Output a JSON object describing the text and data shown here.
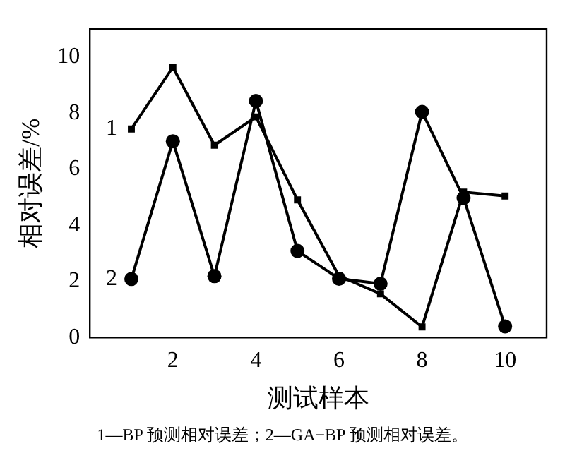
{
  "chart_data": {
    "type": "line",
    "xlabel": "测试样本",
    "ylabel": "相对误差/%",
    "x": [
      1,
      2,
      3,
      4,
      5,
      6,
      7,
      8,
      9,
      10
    ],
    "series": [
      {
        "name": "1",
        "color": "#000000",
        "marker": "square",
        "values": [
          7.44,
          9.64,
          6.86,
          7.87,
          4.91,
          2.2,
          1.56,
          0.38,
          5.19,
          5.05
        ]
      },
      {
        "name": "2",
        "color": "#000000",
        "marker": "circle",
        "values": [
          2.09,
          7.0,
          2.19,
          8.44,
          3.09,
          2.1,
          1.92,
          8.05,
          4.98,
          0.4
        ]
      }
    ],
    "xlim": [
      0,
      11
    ],
    "xticks": [
      2,
      4,
      6,
      8,
      10
    ],
    "ylim": [
      0,
      11
    ],
    "yticks": [
      0,
      2,
      4,
      6,
      8,
      10
    ],
    "grid": false,
    "legend": false,
    "line_style": "solid",
    "annotations": [
      "1—BP 预测相对误差；2—GA−BP 预测相对误差。"
    ]
  }
}
